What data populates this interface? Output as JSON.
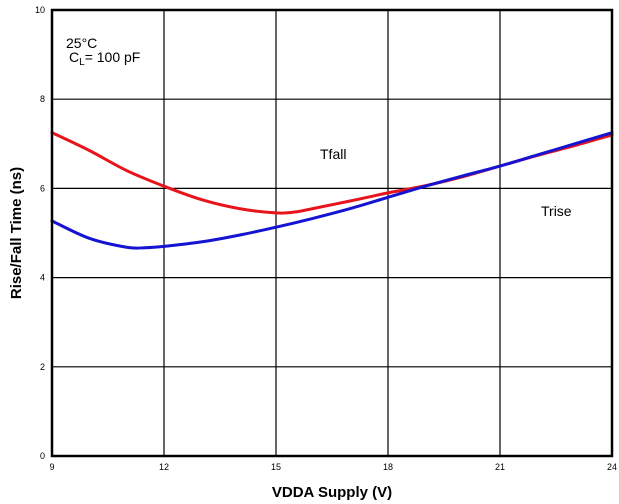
{
  "chart_data": {
    "type": "line",
    "xlabel": "VDDA Supply (V)",
    "ylabel": "Rise/Fall Time (ns)",
    "xlim": [
      9,
      24
    ],
    "ylim": [
      0,
      10
    ],
    "x_ticks": [
      9,
      12,
      15,
      18,
      21,
      24
    ],
    "y_ticks": [
      0,
      2,
      4,
      6,
      8,
      10
    ],
    "grid": true,
    "annotations": {
      "temperature": "25°C",
      "load_prefix": "C",
      "load_subscript": "L",
      "load_value": "= 100 pF",
      "tfall_label": "Tfall",
      "trise_label": "Trise"
    },
    "series": [
      {
        "name": "Tfall",
        "color": "#e8141b",
        "x": [
          9,
          10,
          11,
          12,
          13,
          14,
          15,
          15.5,
          16,
          17,
          18,
          19,
          20,
          21,
          22,
          23,
          24
        ],
        "y": [
          7.25,
          6.85,
          6.4,
          6.05,
          5.75,
          5.55,
          5.45,
          5.47,
          5.55,
          5.72,
          5.9,
          6.06,
          6.26,
          6.5,
          6.74,
          6.96,
          7.2
        ]
      },
      {
        "name": "Trise",
        "color": "#1414d2",
        "x": [
          9,
          10,
          11,
          11.5,
          12,
          13,
          14,
          15,
          16,
          17,
          18,
          19,
          20,
          21,
          22,
          23,
          24
        ],
        "y": [
          5.27,
          4.88,
          4.68,
          4.67,
          4.7,
          4.8,
          4.95,
          5.13,
          5.33,
          5.55,
          5.8,
          6.05,
          6.28,
          6.5,
          6.75,
          7.0,
          7.25
        ]
      }
    ]
  }
}
